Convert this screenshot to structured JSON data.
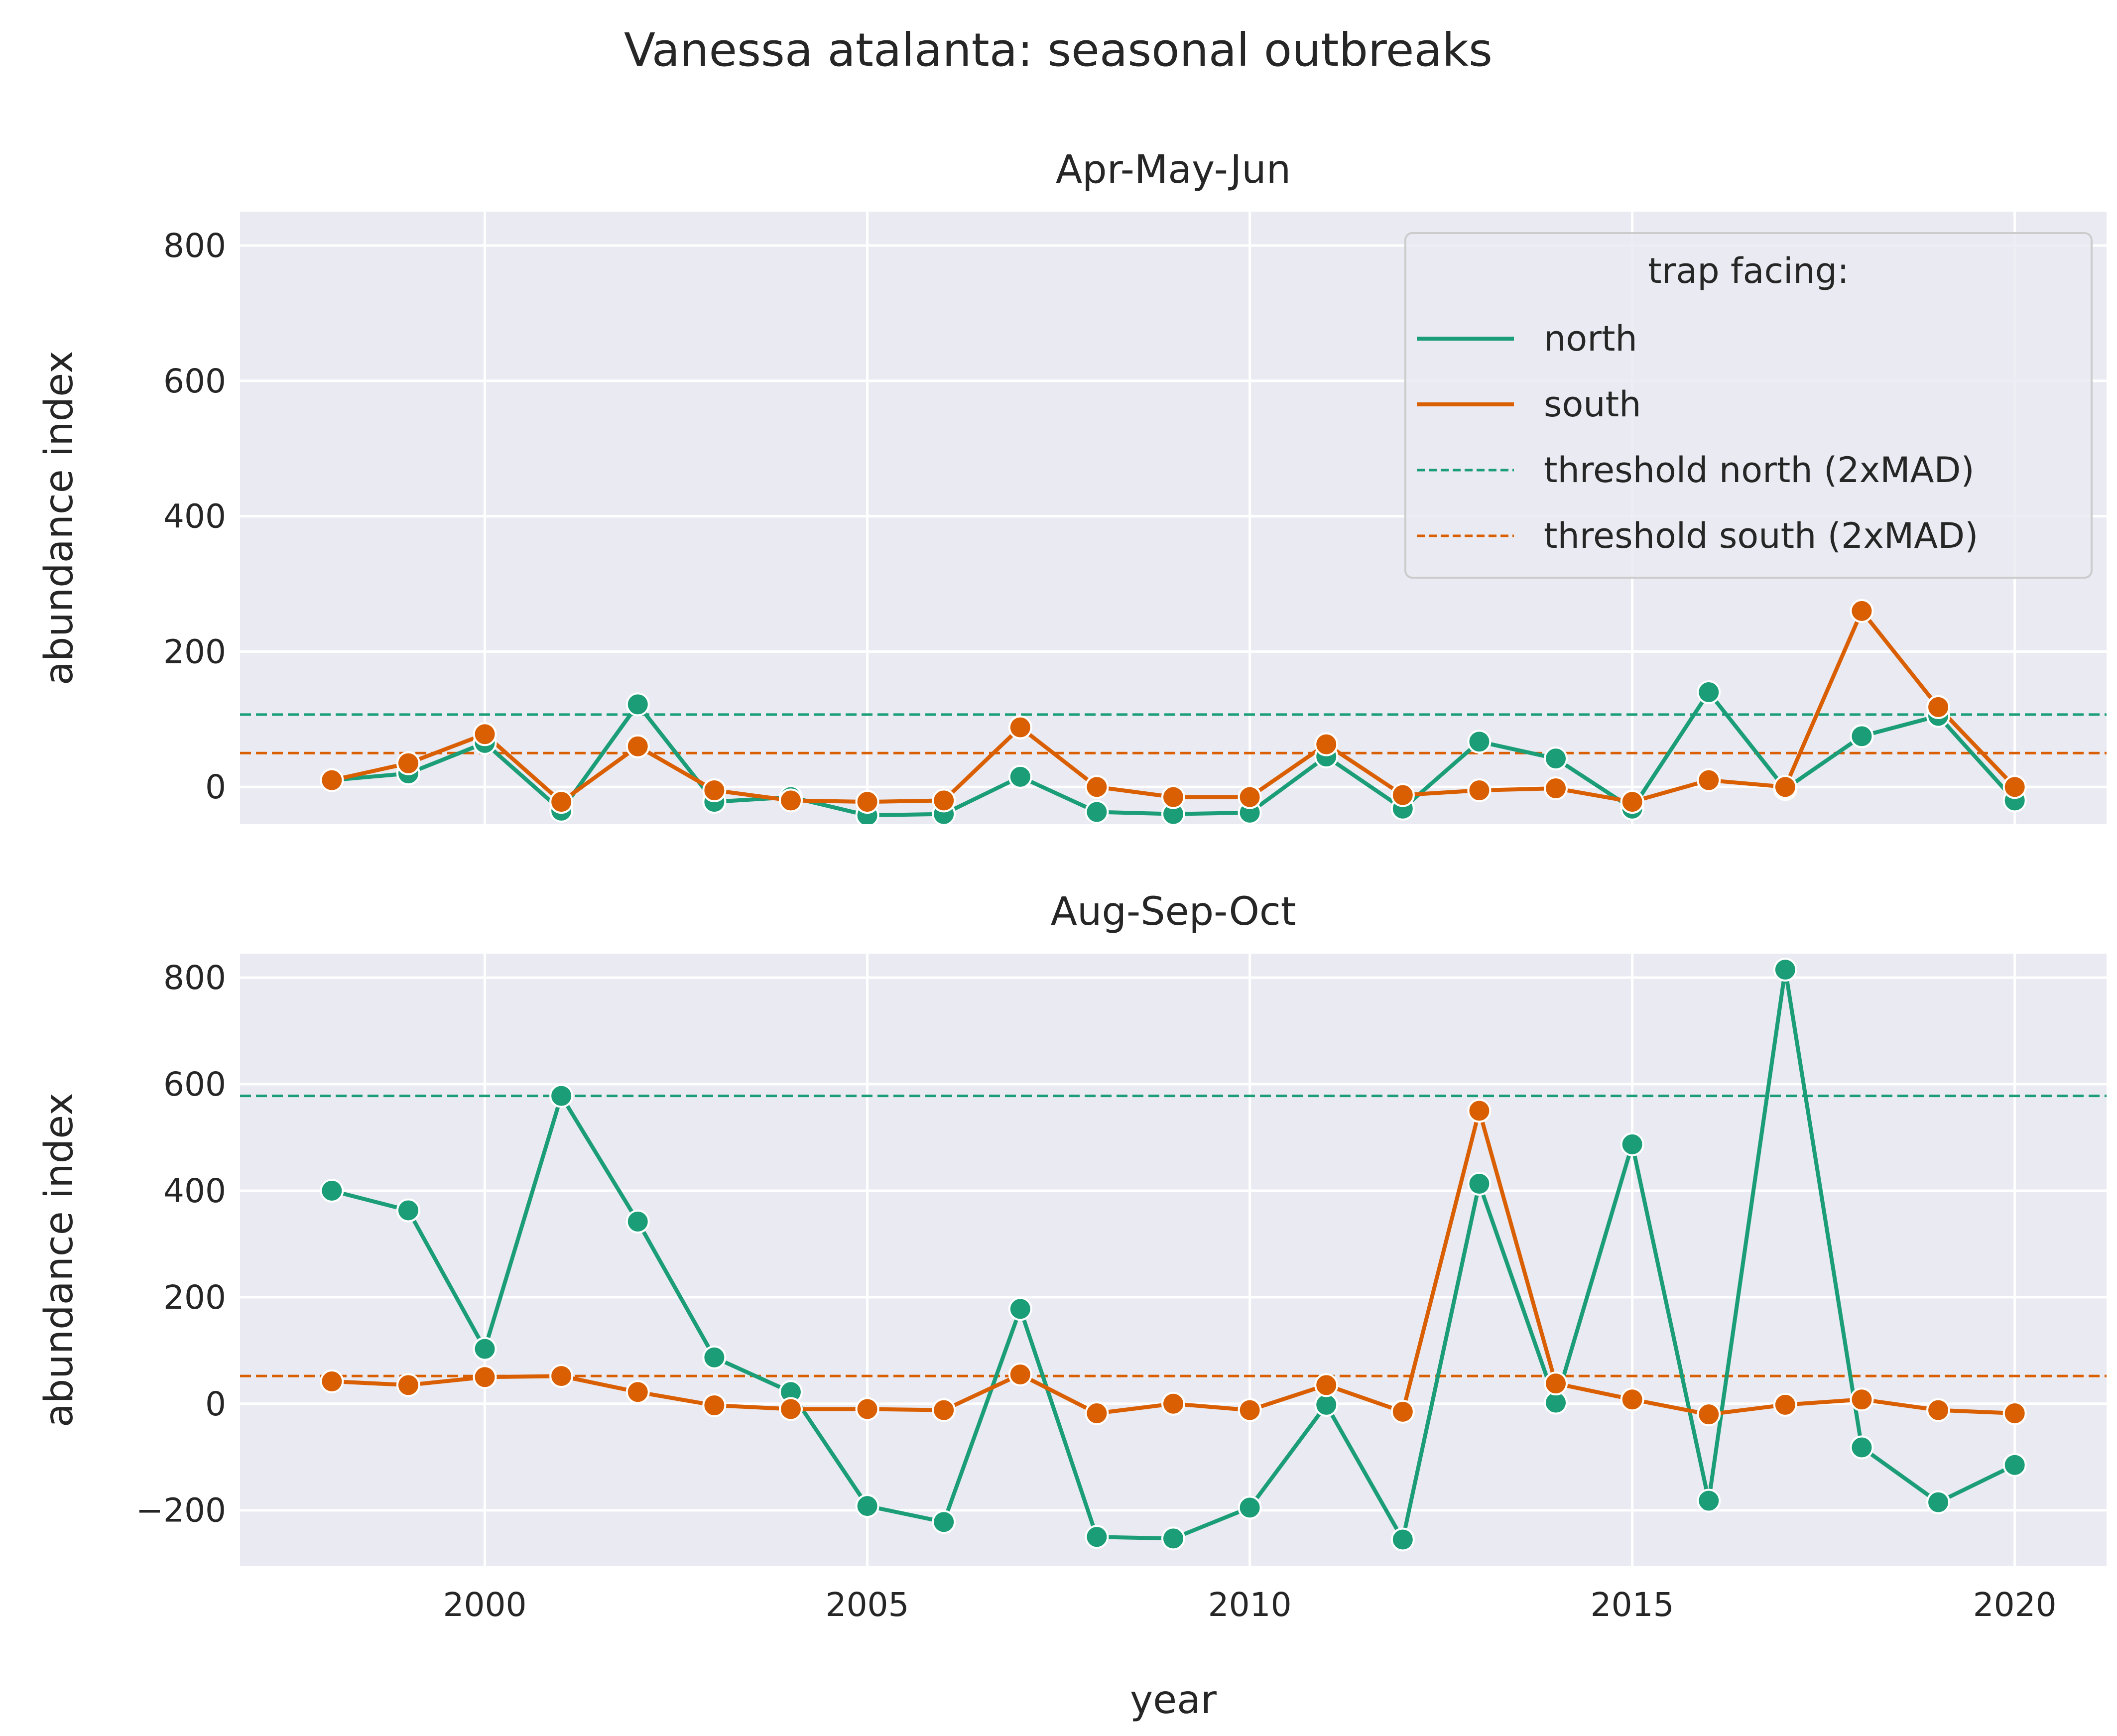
{
  "title": "Vanessa atalanta: seasonal outbreaks",
  "legend": {
    "title": "trap facing:",
    "entries": [
      "north",
      "south",
      "threshold north (2xMAD)",
      "threshold south (2xMAD)"
    ]
  },
  "colors": {
    "north": "#1b9e77",
    "south": "#d95f02",
    "panel_bg": "#eaeaf2",
    "grid": "#ffffff",
    "text": "#262626"
  },
  "chart_data": [
    {
      "type": "line",
      "title": "Apr-May-Jun",
      "xlabel": "",
      "ylabel": "abundance index",
      "xlim": [
        1996.8,
        2021.2
      ],
      "ylim": [
        -55,
        850
      ],
      "xticks": [
        2000,
        2005,
        2010,
        2015,
        2020
      ],
      "yticks": [
        0,
        200,
        400,
        600,
        800
      ],
      "x": [
        1998,
        1999,
        2000,
        2001,
        2002,
        2003,
        2004,
        2005,
        2006,
        2007,
        2008,
        2009,
        2010,
        2011,
        2012,
        2013,
        2014,
        2015,
        2016,
        2017,
        2018,
        2019,
        2020
      ],
      "series": [
        {
          "name": "north",
          "values": [
            10,
            20,
            65,
            -35,
            122,
            -22,
            -15,
            -42,
            -40,
            15,
            -37,
            -40,
            -38,
            45,
            -32,
            67,
            42,
            -32,
            140,
            -3,
            75,
            105,
            -20
          ]
        },
        {
          "name": "south",
          "values": [
            10,
            35,
            78,
            -22,
            60,
            -5,
            -20,
            -22,
            -20,
            88,
            0,
            -15,
            -15,
            63,
            -12,
            -5,
            -2,
            -22,
            10,
            0,
            260,
            118,
            0
          ]
        }
      ],
      "thresholds": [
        {
          "name": "threshold north (2xMAD)",
          "value": 107
        },
        {
          "name": "threshold south (2xMAD)",
          "value": 50
        }
      ],
      "grid": true,
      "legend_position": "top-right"
    },
    {
      "type": "line",
      "title": "Aug-Sep-Oct",
      "xlabel": "year",
      "ylabel": "abundance index",
      "xlim": [
        1996.8,
        2021.2
      ],
      "ylim": [
        -305,
        845
      ],
      "xticks": [
        2000,
        2005,
        2010,
        2015,
        2020
      ],
      "yticks": [
        -200,
        0,
        200,
        400,
        600,
        800
      ],
      "x": [
        1998,
        1999,
        2000,
        2001,
        2002,
        2003,
        2004,
        2005,
        2006,
        2007,
        2008,
        2009,
        2010,
        2011,
        2012,
        2013,
        2014,
        2015,
        2016,
        2017,
        2018,
        2019,
        2020
      ],
      "series": [
        {
          "name": "north",
          "values": [
            400,
            363,
            103,
            578,
            342,
            87,
            22,
            -192,
            -222,
            178,
            -250,
            -253,
            -195,
            -2,
            -255,
            413,
            2,
            487,
            -182,
            815,
            -82,
            -185,
            -115
          ]
        },
        {
          "name": "south",
          "values": [
            42,
            35,
            50,
            52,
            22,
            -3,
            -10,
            -10,
            -12,
            55,
            -18,
            0,
            -12,
            35,
            -15,
            550,
            38,
            8,
            -20,
            -2,
            8,
            -12,
            -18
          ]
        }
      ],
      "thresholds": [
        {
          "name": "threshold north (2xMAD)",
          "value": 578
        },
        {
          "name": "threshold south (2xMAD)",
          "value": 52
        }
      ],
      "grid": true
    }
  ]
}
